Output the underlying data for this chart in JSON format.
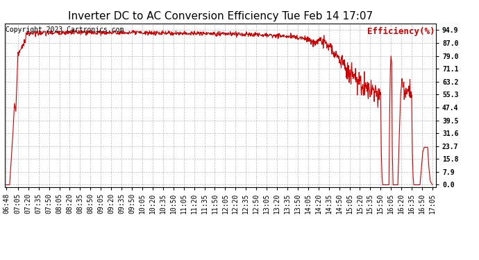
{
  "title": "Inverter DC to AC Conversion Efficiency Tue Feb 14 17:07",
  "copyright": "Copyright 2023 Cartronics.com",
  "legend_label": "Efficiency(%)",
  "line_color": "#cc0000",
  "background_color": "#ffffff",
  "grid_color": "#aaaaaa",
  "ytick_color": "#000000",
  "legend_color": "#cc0000",
  "title_fontsize": 11,
  "copyright_fontsize": 7,
  "legend_fontsize": 9,
  "tick_fontsize": 7,
  "ytick_values": [
    0.0,
    7.9,
    15.8,
    23.7,
    31.6,
    39.5,
    47.4,
    55.3,
    63.2,
    71.1,
    79.0,
    87.0,
    94.9
  ],
  "x_start_minutes": 408,
  "x_end_minutes": 1025,
  "xtick_labels": [
    "06:48",
    "07:05",
    "07:20",
    "07:35",
    "07:50",
    "08:05",
    "08:20",
    "08:35",
    "08:50",
    "09:05",
    "09:20",
    "09:35",
    "09:50",
    "10:05",
    "10:20",
    "10:35",
    "10:50",
    "11:05",
    "11:20",
    "11:35",
    "11:50",
    "12:05",
    "12:20",
    "12:35",
    "12:50",
    "13:05",
    "13:20",
    "13:35",
    "13:50",
    "14:05",
    "14:20",
    "14:35",
    "14:50",
    "15:05",
    "15:20",
    "15:35",
    "15:50",
    "16:05",
    "16:20",
    "16:35",
    "16:50",
    "17:05"
  ],
  "xtick_positions": [
    408,
    425,
    440,
    455,
    470,
    485,
    500,
    515,
    530,
    545,
    560,
    575,
    590,
    605,
    620,
    635,
    650,
    665,
    680,
    695,
    710,
    725,
    740,
    755,
    770,
    785,
    800,
    815,
    830,
    845,
    860,
    875,
    890,
    905,
    920,
    935,
    950,
    965,
    980,
    995,
    1010,
    1025
  ]
}
